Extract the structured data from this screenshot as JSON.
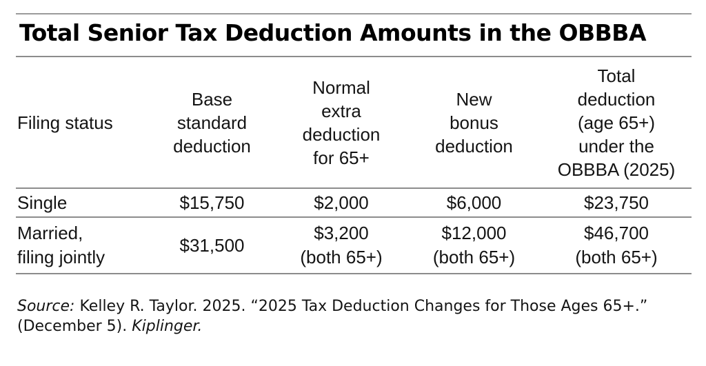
{
  "title": "Total Senior Tax Deduction Amounts in the OBBBA",
  "table": {
    "columns": [
      {
        "label": "Filing status"
      },
      {
        "label": "Base\nstandard\ndeduction"
      },
      {
        "label": "Normal\nextra\ndeduction\nfor 65+"
      },
      {
        "label": "New\nbonus\ndeduction"
      },
      {
        "label": "Total\ndeduction\n(age 65+)\nunder the\nOBBBA (2025)"
      }
    ],
    "rows": [
      {
        "cells": [
          "Single",
          "$15,750",
          "$2,000",
          "$6,000",
          "$23,750"
        ]
      },
      {
        "cells": [
          "Married,\nfiling jointly",
          "$31,500",
          "$3,200\n(both 65+)",
          "$12,000\n(both 65+)",
          "$46,700\n(both 65+)"
        ]
      }
    ]
  },
  "source": {
    "label": "Source:",
    "citation": " Kelley R. Taylor. 2025. “2025 Tax Deduction Changes for Those Ages 65+.” (December 5). ",
    "publication": "Kiplinger."
  },
  "colors": {
    "background": "#ffffff",
    "rule": "#8c8c8c",
    "text": "#141414",
    "title": "#000000"
  },
  "chart_data": {
    "type": "table",
    "title": "Total Senior Tax Deduction Amounts in the OBBBA",
    "columns": [
      "Filing status",
      "Base standard deduction",
      "Normal extra deduction for 65+",
      "New bonus deduction",
      "Total deduction (age 65+) under the OBBBA (2025)"
    ],
    "rows": [
      {
        "filing_status": "Single",
        "base_standard_deduction": 15750,
        "normal_extra_deduction_65plus": 2000,
        "new_bonus_deduction": 6000,
        "total_deduction_obbba_2025": 23750
      },
      {
        "filing_status": "Married, filing jointly",
        "base_standard_deduction": 31500,
        "normal_extra_deduction_65plus": 3200,
        "new_bonus_deduction": 12000,
        "total_deduction_obbba_2025": 46700,
        "qualifier": "both 65+"
      }
    ],
    "source": "Kelley R. Taylor. 2025. “2025 Tax Deduction Changes for Those Ages 65+.” (December 5). Kiplinger."
  }
}
